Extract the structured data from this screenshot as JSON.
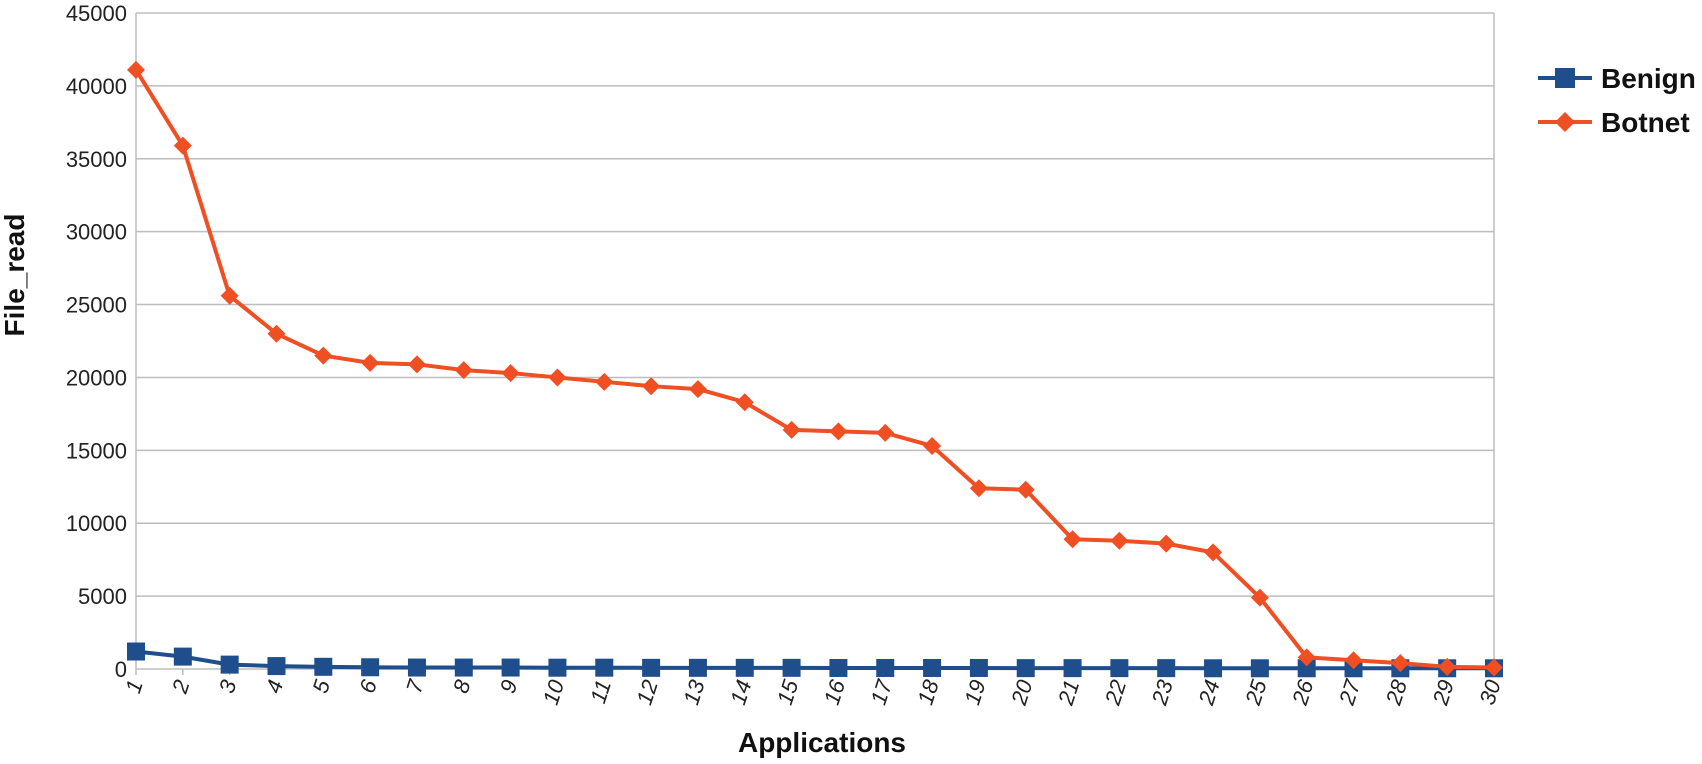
{
  "chart_data": {
    "type": "line",
    "title": "",
    "xlabel": "Applications",
    "ylabel": "File_read",
    "ylim": [
      0,
      45000
    ],
    "yticks": [
      0,
      5000,
      10000,
      15000,
      20000,
      25000,
      30000,
      35000,
      40000,
      45000
    ],
    "categories": [
      "1",
      "2",
      "3",
      "4",
      "5",
      "6",
      "7",
      "8",
      "9",
      "10",
      "11",
      "12",
      "13",
      "14",
      "15",
      "16",
      "17",
      "18",
      "19",
      "20",
      "21",
      "22",
      "23",
      "24",
      "25",
      "26",
      "27",
      "28",
      "29",
      "30"
    ],
    "grid": true,
    "legend_position": "right",
    "series": [
      {
        "name": "Benign",
        "color": "#1f4e8c",
        "marker": "square",
        "values": [
          1200,
          850,
          300,
          200,
          150,
          120,
          100,
          100,
          100,
          90,
          90,
          80,
          80,
          80,
          80,
          70,
          70,
          70,
          70,
          60,
          60,
          60,
          60,
          50,
          50,
          50,
          50,
          50,
          50,
          50
        ]
      },
      {
        "name": "Botnet",
        "color": "#f04e23",
        "marker": "diamond",
        "values": [
          41100,
          35900,
          25600,
          23000,
          21500,
          21000,
          20900,
          20500,
          20300,
          20000,
          19700,
          19400,
          19200,
          18300,
          16400,
          16300,
          16200,
          15300,
          12400,
          12300,
          8900,
          8800,
          8600,
          8000,
          4900,
          800,
          600,
          400,
          150,
          100
        ]
      }
    ]
  }
}
